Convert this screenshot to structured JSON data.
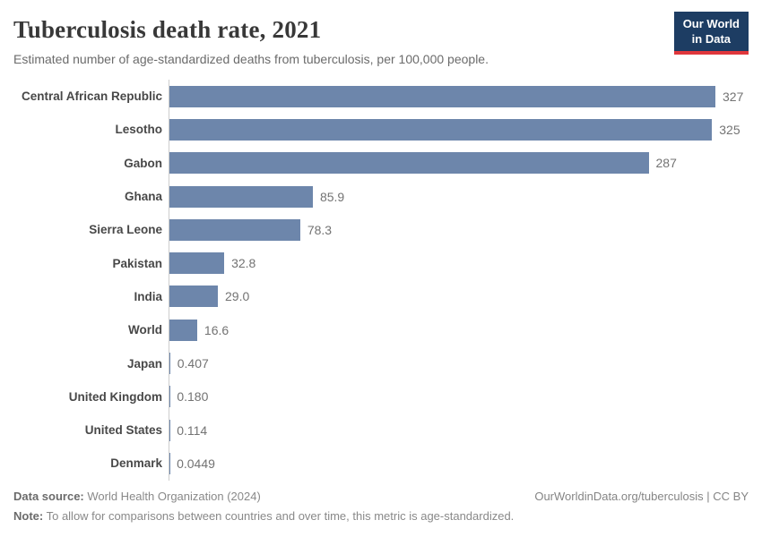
{
  "header": {
    "title": "Tuberculosis death rate, 2021",
    "subtitle": "Estimated number of age-standardized deaths from tuberculosis, per 100,000 people.",
    "logo": {
      "line1": "Our World",
      "line2": "in Data"
    }
  },
  "chart_data": {
    "type": "bar",
    "orientation": "horizontal",
    "title": "Tuberculosis death rate, 2021",
    "xlabel": "",
    "ylabel": "",
    "categories": [
      "Central African Republic",
      "Lesotho",
      "Gabon",
      "Ghana",
      "Sierra Leone",
      "Pakistan",
      "India",
      "World",
      "Japan",
      "United Kingdom",
      "United States",
      "Denmark"
    ],
    "values": [
      327,
      325,
      287,
      85.9,
      78.3,
      32.8,
      29.0,
      16.6,
      0.407,
      0.18,
      0.114,
      0.0449
    ],
    "value_labels": [
      "327",
      "325",
      "287",
      "85.9",
      "78.3",
      "32.8",
      "29.0",
      "16.6",
      "0.407",
      "0.180",
      "0.114",
      "0.0449"
    ],
    "xlim": [
      0,
      327
    ],
    "grid": false,
    "legend": false,
    "bar_color": "#6d86ab",
    "axis_line_color": "#cdcdcd"
  },
  "colors": {
    "brand_navy": "#1d3d63",
    "brand_red": "#e0373c",
    "bar": "#6d86ab"
  },
  "footer": {
    "datasource_label": "Data source:",
    "datasource_text": " World Health Organization (2024)",
    "note_label": "Note:",
    "note_text": " To allow for comparisons between countries and over time, this metric is age-standardized.",
    "link": "OurWorldinData.org/tuberculosis | CC BY"
  }
}
